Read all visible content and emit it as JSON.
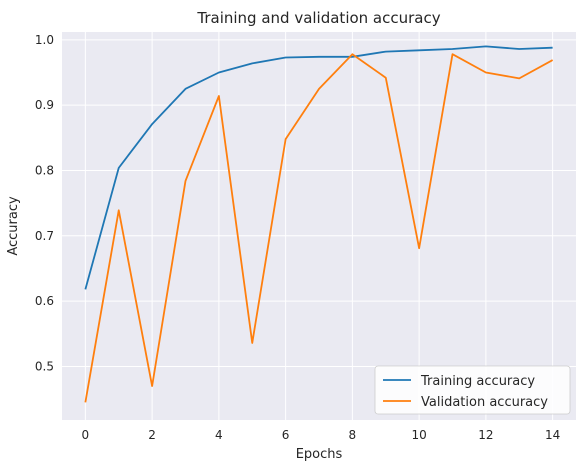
{
  "chart_data": {
    "type": "line",
    "title": "Training and validation accuracy",
    "xlabel": "Epochs",
    "ylabel": "Accuracy",
    "x": [
      0,
      1,
      2,
      3,
      4,
      5,
      6,
      7,
      8,
      9,
      10,
      11,
      12,
      13,
      14
    ],
    "xticks": [
      0,
      2,
      4,
      6,
      8,
      10,
      12,
      14
    ],
    "yticks": [
      0.5,
      0.6,
      0.7,
      0.8,
      0.9,
      1.0
    ],
    "ytick_labels": [
      "0.5",
      "0.6",
      "0.7",
      "0.8",
      "0.9",
      "1.0"
    ],
    "xlim": [
      -0.7,
      14.7
    ],
    "ylim": [
      0.418,
      1.012
    ],
    "grid": true,
    "legend_position": "lower-right",
    "background": "#eaeaf2",
    "series": [
      {
        "name": "Training accuracy",
        "color": "#1f77b4",
        "values": [
          0.618,
          0.804,
          0.871,
          0.925,
          0.95,
          0.964,
          0.973,
          0.974,
          0.974,
          0.982,
          0.984,
          0.986,
          0.99,
          0.986,
          0.988
        ]
      },
      {
        "name": "Validation accuracy",
        "color": "#ff7f0e",
        "values": [
          0.445,
          0.739,
          0.47,
          0.784,
          0.914,
          0.536,
          0.848,
          0.925,
          0.978,
          0.942,
          0.681,
          0.978,
          0.95,
          0.941,
          0.969
        ]
      }
    ]
  }
}
